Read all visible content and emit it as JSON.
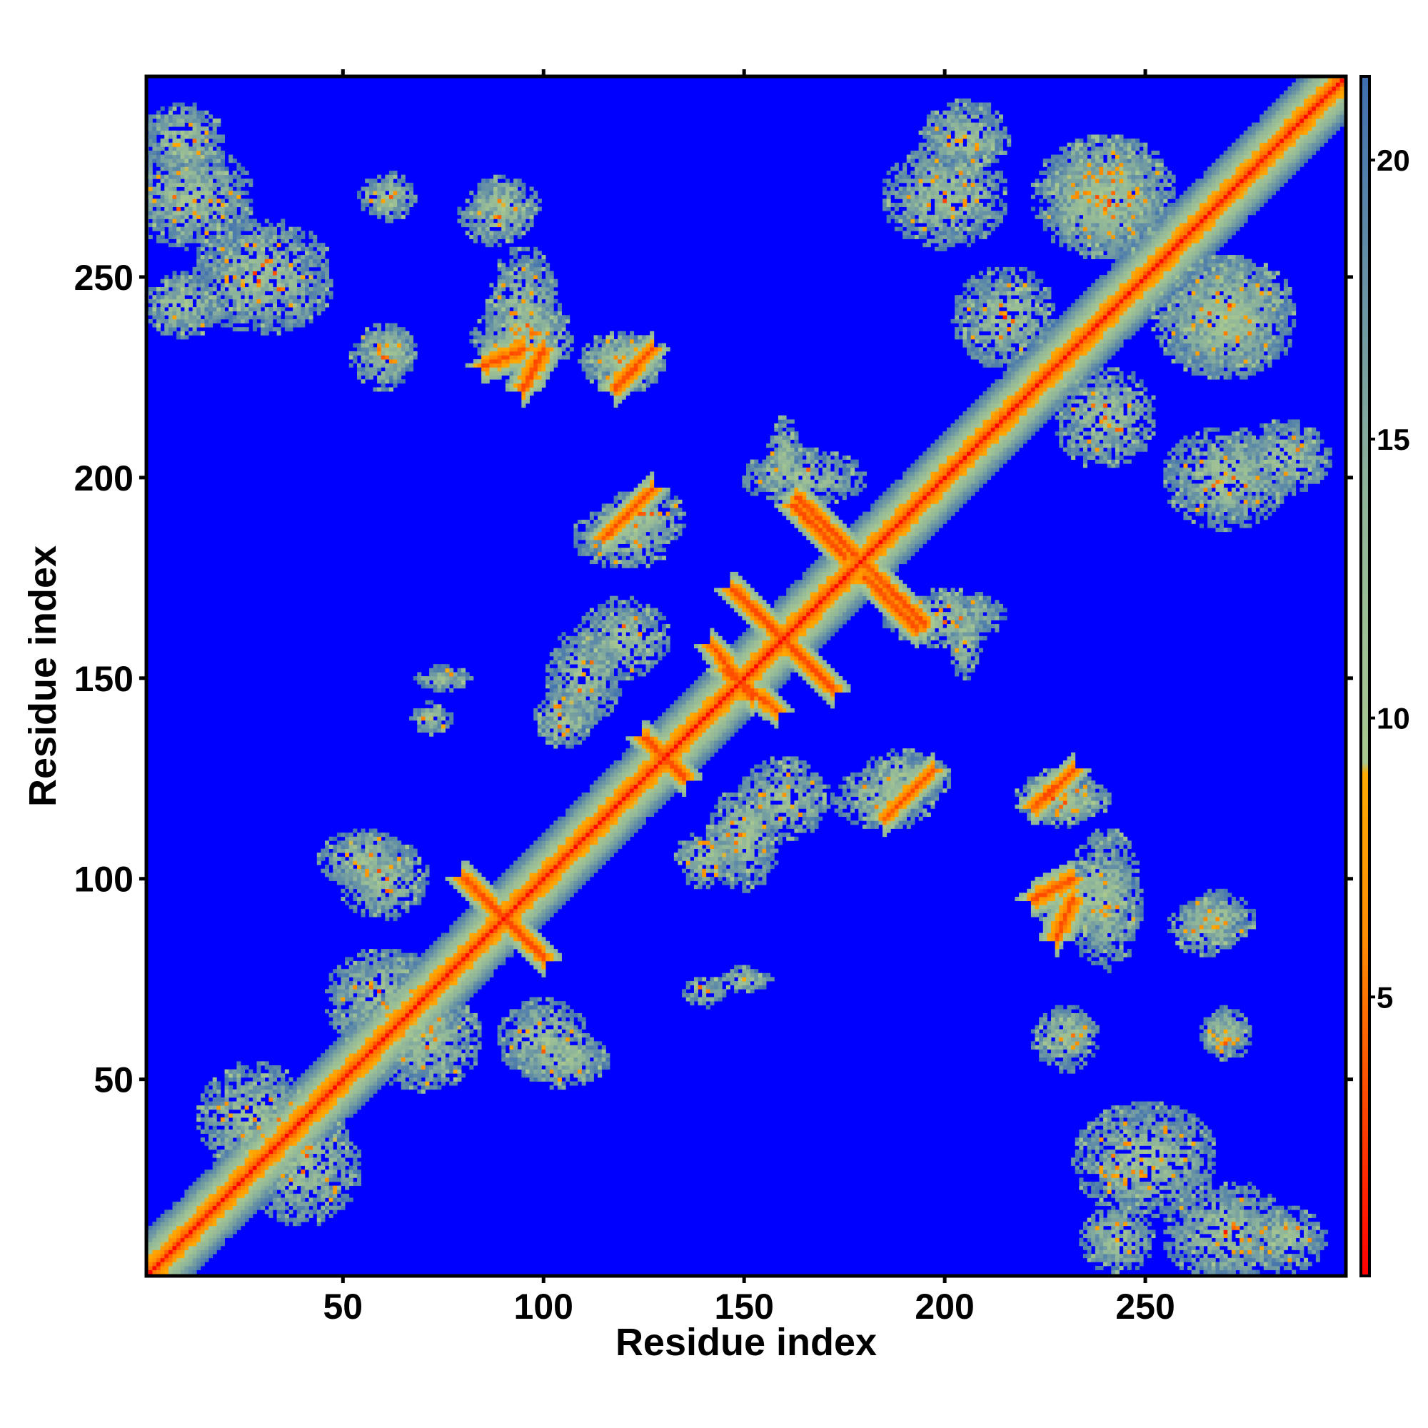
{
  "chart_data": {
    "type": "heatmap",
    "title": "",
    "xlabel": "Residue index",
    "ylabel": "Residue index",
    "xlim": [
      1,
      300
    ],
    "ylim": [
      1,
      300
    ],
    "x_ticks": [
      50,
      100,
      150,
      200,
      250
    ],
    "y_ticks": [
      50,
      100,
      150,
      200,
      250
    ],
    "x_tick_labels": [
      "50",
      "100",
      "150",
      "200",
      "250"
    ],
    "y_tick_labels": [
      "50",
      "100",
      "150",
      "200",
      "250"
    ],
    "colorbar": {
      "range": [
        0,
        21.5
      ],
      "ticks": [
        5,
        10,
        15,
        20
      ],
      "tick_labels": [
        "5",
        "10",
        "15",
        "20"
      ],
      "stops": [
        {
          "value": 0,
          "color": "#ff0000"
        },
        {
          "value": 6,
          "color": "#ff8c00"
        },
        {
          "value": 9,
          "color": "#ffaa00"
        },
        {
          "value": 9.2,
          "color": "#a9c98f"
        },
        {
          "value": 14,
          "color": "#8fb59a"
        },
        {
          "value": 21.5,
          "color": "#3f6fb0"
        }
      ]
    },
    "background_color": "#0000ff",
    "cutoff": 21,
    "matrix_description_values": {
      "diagonal_band_width_residues": 8,
      "contact_blocks": [
        {
          "x": 12,
          "y": 270,
          "w": 30,
          "h": 25
        },
        {
          "x": 60,
          "y": 270,
          "w": 12,
          "h": 10
        },
        {
          "x": 88,
          "y": 265,
          "w": 18,
          "h": 14
        },
        {
          "x": 62,
          "y": 232,
          "w": 12,
          "h": 12
        },
        {
          "x": 95,
          "y": 240,
          "w": 18,
          "h": 35
        },
        {
          "x": 120,
          "y": 230,
          "w": 22,
          "h": 12
        },
        {
          "x": 160,
          "y": 205,
          "w": 8,
          "h": 20
        },
        {
          "x": 200,
          "y": 270,
          "w": 30,
          "h": 25
        },
        {
          "x": 240,
          "y": 270,
          "w": 35,
          "h": 30
        },
        {
          "x": 215,
          "y": 240,
          "w": 25,
          "h": 25
        },
        {
          "x": 270,
          "y": 240,
          "w": 28,
          "h": 30
        },
        {
          "x": 285,
          "y": 205,
          "w": 22,
          "h": 18
        },
        {
          "x": 125,
          "y": 190,
          "w": 22,
          "h": 14
        },
        {
          "x": 110,
          "y": 150,
          "w": 18,
          "h": 25
        },
        {
          "x": 75,
          "y": 150,
          "w": 14,
          "h": 6
        },
        {
          "x": 200,
          "y": 165,
          "w": 30,
          "h": 14
        },
        {
          "x": 160,
          "y": 120,
          "w": 22,
          "h": 20
        },
        {
          "x": 185,
          "y": 120,
          "w": 25,
          "h": 15
        },
        {
          "x": 228,
          "y": 120,
          "w": 20,
          "h": 14
        },
        {
          "x": 55,
          "y": 105,
          "w": 22,
          "h": 14
        },
        {
          "x": 140,
          "y": 105,
          "w": 14,
          "h": 14
        },
        {
          "x": 235,
          "y": 95,
          "w": 25,
          "h": 18
        },
        {
          "x": 268,
          "y": 90,
          "w": 18,
          "h": 14
        },
        {
          "x": 60,
          "y": 70,
          "w": 28,
          "h": 25
        },
        {
          "x": 100,
          "y": 60,
          "w": 22,
          "h": 20
        },
        {
          "x": 140,
          "y": 72,
          "w": 10,
          "h": 8
        },
        {
          "x": 230,
          "y": 60,
          "w": 16,
          "h": 16
        },
        {
          "x": 270,
          "y": 62,
          "w": 12,
          "h": 12
        },
        {
          "x": 28,
          "y": 40,
          "w": 28,
          "h": 28
        },
        {
          "x": 250,
          "y": 30,
          "w": 35,
          "h": 28
        },
        {
          "x": 285,
          "y": 10,
          "w": 20,
          "h": 16
        },
        {
          "x": 243,
          "y": 10,
          "w": 18,
          "h": 16
        }
      ],
      "cross_strands": [
        {
          "x0": 163,
          "y0": 195,
          "x1": 178,
          "y1": 180
        },
        {
          "x0": 147,
          "y0": 172,
          "x1": 172,
          "y1": 147
        },
        {
          "x0": 142,
          "y0": 158,
          "x1": 152,
          "y1": 145
        },
        {
          "x0": 180,
          "y0": 175,
          "x1": 193,
          "y1": 162
        },
        {
          "x0": 80,
          "y0": 100,
          "x1": 95,
          "y1": 85
        },
        {
          "x0": 125,
          "y0": 135,
          "x1": 135,
          "y1": 125
        },
        {
          "x0": 188,
          "y0": 118,
          "x1": 197,
          "y1": 127
        },
        {
          "x0": 225,
          "y0": 120,
          "x1": 232,
          "y1": 127
        },
        {
          "x0": 222,
          "y0": 95,
          "x1": 232,
          "y1": 100
        },
        {
          "x0": 115,
          "y0": 185,
          "x1": 125,
          "y1": 195
        },
        {
          "x0": 118,
          "y0": 222,
          "x1": 127,
          "y1": 232
        },
        {
          "x0": 85,
          "y0": 228,
          "x1": 95,
          "y1": 232
        }
      ]
    }
  }
}
